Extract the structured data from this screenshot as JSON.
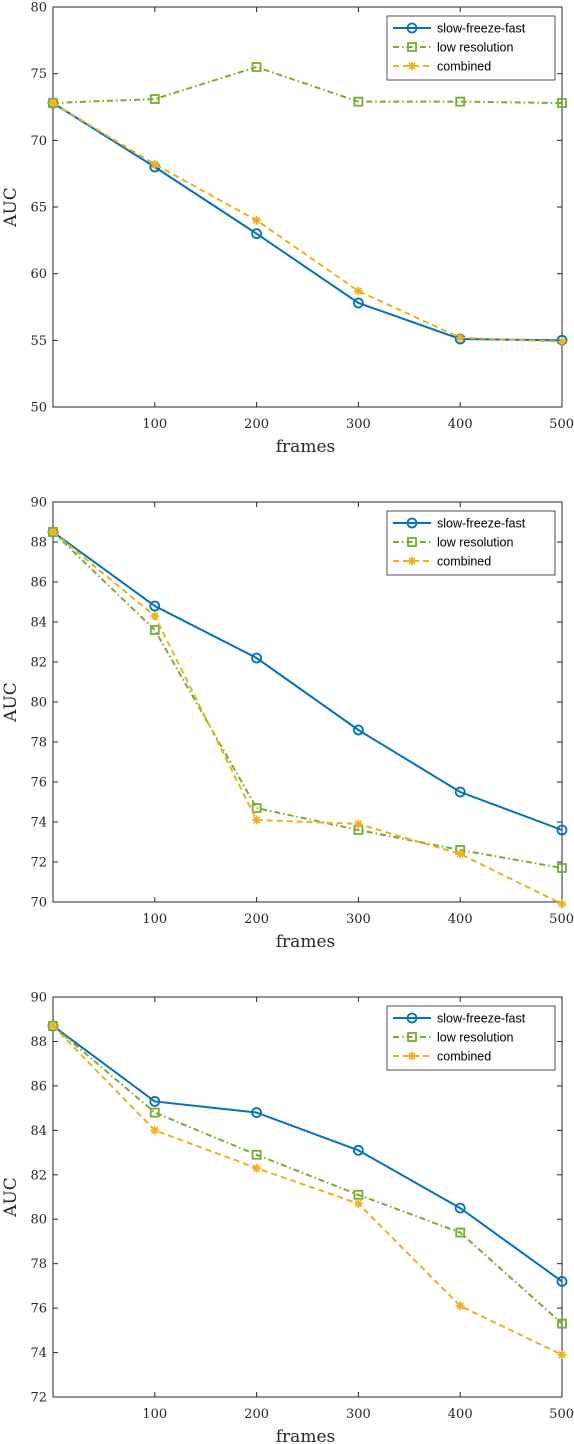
{
  "chart_data": [
    {
      "type": "line",
      "xlabel": "frames",
      "ylabel": "AUC",
      "x": [
        0,
        100,
        200,
        300,
        400,
        500
      ],
      "xticks": [
        100,
        200,
        300,
        400,
        500
      ],
      "xlim": [
        0,
        500
      ],
      "ylim": [
        50,
        80
      ],
      "yticks": [
        50,
        55,
        60,
        65,
        70,
        75,
        80
      ],
      "grid": false,
      "legend": "top-right",
      "series": [
        {
          "name": "slow-freeze-fast",
          "color": "#0072BD",
          "marker": "circle",
          "dash": "solid",
          "values": [
            72.8,
            68.0,
            63.0,
            57.8,
            55.1,
            55.0
          ]
        },
        {
          "name": "low resolution",
          "color": "#77AC30",
          "marker": "square",
          "dash": "dashdot",
          "values": [
            72.8,
            73.1,
            75.5,
            72.9,
            72.9,
            72.8
          ]
        },
        {
          "name": "combined",
          "color": "#EDB120",
          "marker": "asterisk",
          "dash": "dashed",
          "values": [
            72.8,
            68.2,
            64.0,
            58.7,
            55.2,
            54.9
          ]
        }
      ]
    },
    {
      "type": "line",
      "xlabel": "frames",
      "ylabel": "AUC",
      "x": [
        0,
        100,
        200,
        300,
        400,
        500
      ],
      "xticks": [
        100,
        200,
        300,
        400,
        500
      ],
      "xlim": [
        0,
        500
      ],
      "ylim": [
        70,
        90
      ],
      "yticks": [
        70,
        72,
        74,
        76,
        78,
        80,
        82,
        84,
        86,
        88,
        90
      ],
      "grid": false,
      "legend": "top-right",
      "series": [
        {
          "name": "slow-freeze-fast",
          "color": "#0072BD",
          "marker": "circle",
          "dash": "solid",
          "values": [
            88.5,
            84.8,
            82.2,
            78.6,
            75.5,
            73.6
          ]
        },
        {
          "name": "low resolution",
          "color": "#77AC30",
          "marker": "square",
          "dash": "dashdot",
          "values": [
            88.5,
            83.6,
            74.7,
            73.6,
            72.6,
            71.7
          ]
        },
        {
          "name": "combined",
          "color": "#EDB120",
          "marker": "asterisk",
          "dash": "dashed",
          "values": [
            88.5,
            84.3,
            74.1,
            73.9,
            72.4,
            69.9
          ]
        }
      ]
    },
    {
      "type": "line",
      "xlabel": "frames",
      "ylabel": "AUC",
      "x": [
        0,
        100,
        200,
        300,
        400,
        500
      ],
      "xticks": [
        100,
        200,
        300,
        400,
        500
      ],
      "xlim": [
        0,
        500
      ],
      "ylim": [
        72,
        90
      ],
      "yticks": [
        72,
        74,
        76,
        78,
        80,
        82,
        84,
        86,
        88,
        90
      ],
      "grid": false,
      "legend": "top-right",
      "series": [
        {
          "name": "slow-freeze-fast",
          "color": "#0072BD",
          "marker": "circle",
          "dash": "solid",
          "values": [
            88.7,
            85.3,
            84.8,
            83.1,
            80.5,
            77.2
          ]
        },
        {
          "name": "low resolution",
          "color": "#77AC30",
          "marker": "square",
          "dash": "dashdot",
          "values": [
            88.7,
            84.8,
            82.9,
            81.1,
            79.4,
            75.3
          ]
        },
        {
          "name": "combined",
          "color": "#EDB120",
          "marker": "asterisk",
          "dash": "dashed",
          "values": [
            88.7,
            84.0,
            82.3,
            80.7,
            76.1,
            73.9
          ]
        }
      ]
    }
  ]
}
